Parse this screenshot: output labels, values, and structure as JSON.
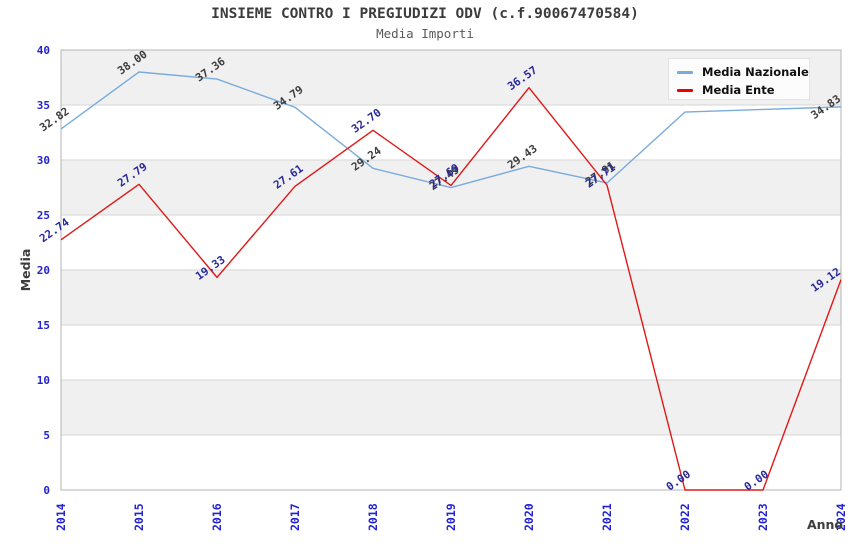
{
  "title": "INSIEME CONTRO I PREGIUDIZI ODV (c.f.90067470584)",
  "subtitle": "Media Importi",
  "legend": {
    "position": "top-right",
    "items": [
      {
        "label": "Media Nazionale",
        "color": "#79abdc"
      },
      {
        "label": "Media Ente",
        "color": "#ee0000"
      }
    ]
  },
  "axes": {
    "y_label": "Media",
    "x_label": "Anno",
    "y_ticks": [
      0,
      5,
      10,
      15,
      20,
      25,
      30,
      35,
      40
    ],
    "x_ticks": [
      "2014",
      "2015",
      "2016",
      "2017",
      "2018",
      "2019",
      "2020",
      "2021",
      "2022",
      "2023",
      "2024"
    ],
    "tick_color": "#2323d0"
  },
  "colors": {
    "band_gray": "#f0f0f0",
    "grid_line": "#d6d6d6",
    "plot_border": "#b5b5b5",
    "nazionale_line": "#79abdc",
    "ente_line": "#e11818",
    "nazionale_label": "#3d3d3d",
    "ente_label": "#2a2a9c",
    "axis_text": "#3d3d3d"
  },
  "chart_data": {
    "type": "line",
    "title": "INSIEME CONTRO I PREGIUDIZI ODV (c.f.90067470584)",
    "subtitle": "Media Importi",
    "xlabel": "Anno",
    "ylabel": "Media",
    "x": [
      2014,
      2015,
      2016,
      2017,
      2018,
      2019,
      2020,
      2021,
      2022,
      2023,
      2024
    ],
    "ylim": [
      0,
      40
    ],
    "grid": "horizontal gridlines every 5 units, alternating gray bands",
    "gray_bands": [
      [
        5,
        10
      ],
      [
        15,
        20
      ],
      [
        25,
        30
      ],
      [
        35,
        40
      ]
    ],
    "legend_position": "top-right",
    "series": [
      {
        "name": "Media Nazionale",
        "color": "#79abdc",
        "label_color": "#3d3d3d",
        "values": [
          32.82,
          38.0,
          37.36,
          34.79,
          29.24,
          27.49,
          29.43,
          27.91,
          34.36,
          34.6,
          34.83
        ],
        "labels": [
          "32.82",
          "38.00",
          "37.36",
          "34.79",
          "29.24",
          "27.49",
          "29.43",
          "27.91",
          "",
          "",
          "34.83"
        ],
        "note_labels_hidden": "2022 and 2023 labels are covered by the legend box"
      },
      {
        "name": "Media Ente",
        "color": "#e11818",
        "label_color": "#2a2a9c",
        "values": [
          22.74,
          27.79,
          19.33,
          27.61,
          32.7,
          27.69,
          36.57,
          27.71,
          0.0,
          0.0,
          19.12
        ],
        "labels": [
          "22.74",
          "27.79",
          "19.33",
          "27.61",
          "32.70",
          "27.69",
          "36.57",
          "27.71",
          "0.00",
          "0.00",
          "19.12"
        ]
      }
    ]
  }
}
